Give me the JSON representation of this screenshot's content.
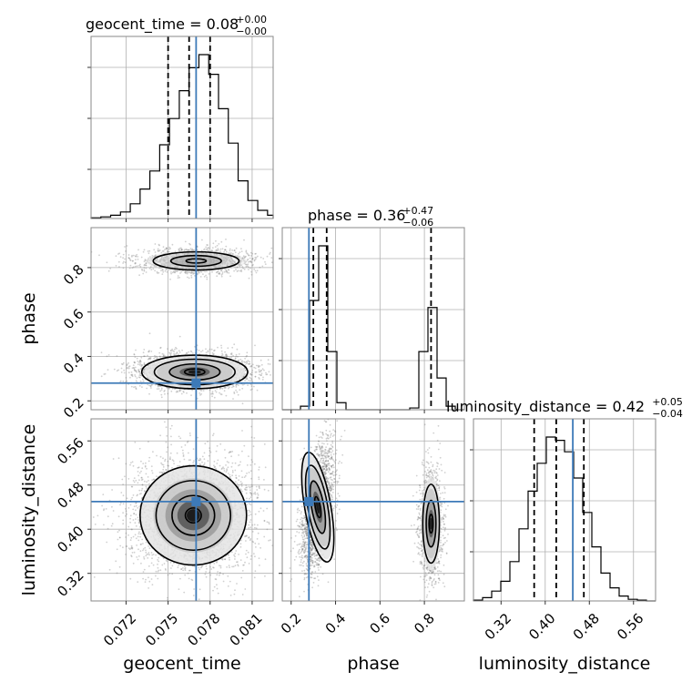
{
  "chart_data": {
    "type": "corner",
    "colors": {
      "truth": "#3d7ab8",
      "line": "#000000",
      "grid": "#b0b0b0"
    },
    "parameters": [
      {
        "key": "geocent_time",
        "label": "geocent_time",
        "title": {
          "main": "geocent_time = 0.08",
          "sup": "+0.00",
          "sub": "−0.00"
        },
        "range": [
          0.0695,
          0.0825
        ],
        "ticks": [
          0.072,
          0.075,
          0.078,
          0.081
        ],
        "tick_labels": [
          "0.072",
          "0.075",
          "0.078",
          "0.081"
        ],
        "truth": 0.077,
        "quantiles": [
          0.075,
          0.0765,
          0.078
        ],
        "hist_bins": [
          0.0695,
          0.0702,
          0.0709,
          0.0716,
          0.0723,
          0.073,
          0.0737,
          0.0744,
          0.0751,
          0.0758,
          0.0765,
          0.0772,
          0.0779,
          0.0786,
          0.0793,
          0.08,
          0.0807,
          0.0814,
          0.0821,
          0.0825
        ],
        "hist_values": [
          0.4,
          1,
          2,
          4,
          9,
          18,
          29,
          45,
          61,
          78,
          92,
          100,
          88,
          67,
          46,
          23,
          11,
          5,
          2
        ]
      },
      {
        "key": "phase",
        "label": "phase",
        "title": {
          "main": "phase = 0.36",
          "sup": "+0.47",
          "sub": "−0.06"
        },
        "range": [
          0.16,
          0.98
        ],
        "ticks": [
          0.2,
          0.4,
          0.6,
          0.8
        ],
        "tick_labels": [
          "0.2",
          "0.4",
          "0.6",
          "0.8"
        ],
        "truth": 0.28,
        "quantiles": [
          0.3,
          0.36,
          0.83
        ],
        "hist_bins": [
          0.16,
          0.201,
          0.242,
          0.283,
          0.324,
          0.365,
          0.406,
          0.447,
          0.488,
          0.529,
          0.57,
          0.611,
          0.652,
          0.693,
          0.734,
          0.775,
          0.816,
          0.857,
          0.898,
          0.939,
          0.98
        ],
        "hist_values": [
          0,
          0,
          2,
          62,
          93,
          33,
          4,
          0,
          0,
          0,
          0,
          0,
          0,
          0,
          1,
          33,
          58,
          18,
          2,
          0
        ]
      },
      {
        "key": "luminosity_distance",
        "label": "luminosity_distance",
        "title": {
          "main": "luminosity_distance = 0.42",
          "sup": "+0.05",
          "sub": "−0.04"
        },
        "range": [
          0.27,
          0.6
        ],
        "ticks": [
          0.32,
          0.4,
          0.48,
          0.56
        ],
        "tick_labels": [
          "0.32",
          "0.40",
          "0.48",
          "0.56"
        ],
        "truth": 0.45,
        "quantiles": [
          0.38,
          0.42,
          0.47
        ],
        "hist_bins": [
          0.27,
          0.2865,
          0.303,
          0.3195,
          0.336,
          0.3525,
          0.369,
          0.3855,
          0.402,
          0.4185,
          0.435,
          0.4515,
          0.468,
          0.4845,
          0.501,
          0.5175,
          0.534,
          0.5505,
          0.567,
          0.5835,
          0.6
        ],
        "hist_values": [
          0.5,
          2,
          6,
          12,
          24,
          44,
          67,
          84,
          100,
          98,
          91,
          75,
          54,
          33,
          17,
          8,
          3,
          1,
          0.5,
          0
        ]
      }
    ],
    "contours_2d": [
      {
        "x": "geocent_time",
        "y": "phase",
        "blobs": [
          {
            "cx": 0.0769,
            "cy": 0.33,
            "sx": 0.0018,
            "sy": 0.036,
            "levels": [
              0.4,
              1.0,
              1.6,
              2.1
            ],
            "dots": 2600,
            "peak": 0.95
          },
          {
            "cx": 0.077,
            "cy": 0.83,
            "sx": 0.0018,
            "sy": 0.024,
            "levels": [
              0.4,
              1.0,
              1.7
            ],
            "dots": 1500,
            "peak": 0.35
          }
        ]
      },
      {
        "x": "geocent_time",
        "y": "luminosity_distance",
        "blobs": [
          {
            "cx": 0.0768,
            "cy": 0.425,
            "sx": 0.0019,
            "sy": 0.045,
            "levels": [
              0.3,
              0.8,
              1.4,
              2.0
            ],
            "dots": 3200,
            "peak": 1.0
          }
        ]
      },
      {
        "x": "phase",
        "y": "luminosity_distance",
        "blobs": [
          {
            "cx": 0.32,
            "cy": 0.44,
            "sx": 0.028,
            "sy": 0.048,
            "levels": [
              0.4,
              1.0,
              1.6,
              2.1
            ],
            "dots": 2300,
            "peak": 1.0,
            "tilt": -0.5
          },
          {
            "cx": 0.83,
            "cy": 0.41,
            "sx": 0.022,
            "sy": 0.042,
            "levels": [
              0.4,
              1.0,
              1.7
            ],
            "dots": 1400,
            "peak": 0.55
          }
        ]
      }
    ]
  }
}
